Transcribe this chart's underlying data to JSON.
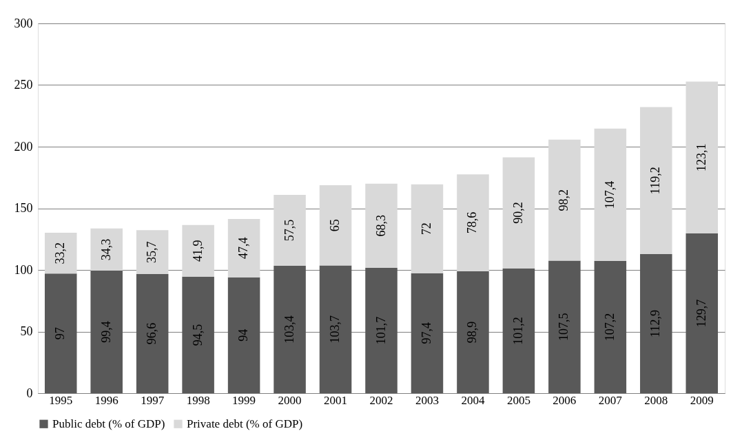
{
  "chart_data": {
    "type": "bar",
    "stacked": true,
    "categories": [
      "1995",
      "1996",
      "1997",
      "1998",
      "1999",
      "2000",
      "2001",
      "2002",
      "2003",
      "2004",
      "2005",
      "2006",
      "2007",
      "2008",
      "2009"
    ],
    "series": [
      {
        "name": "Public debt (% of GDP)",
        "color": "#595959",
        "values": [
          97,
          99.4,
          96.6,
          94.5,
          94,
          103.4,
          103.7,
          101.7,
          97.4,
          98.9,
          101.2,
          107.5,
          107.2,
          112.9,
          129.7
        ],
        "value_labels": [
          "97",
          "99,4",
          "96,6",
          "94,5",
          "94",
          "103,4",
          "103,7",
          "101,7",
          "97,4",
          "98,9",
          "101,2",
          "107,5",
          "107,2",
          "112,9",
          "129,7"
        ]
      },
      {
        "name": "Private debt (% of GDP)",
        "color": "#d9d9d9",
        "values": [
          33.2,
          34.3,
          35.7,
          41.9,
          47.4,
          57.5,
          65,
          68.3,
          72,
          78.6,
          90.2,
          98.2,
          107.4,
          119.2,
          123.1
        ],
        "value_labels": [
          "33,2",
          "34,3",
          "35,7",
          "41,9",
          "47,4",
          "57,5",
          "65",
          "68,3",
          "72",
          "78,6",
          "90,2",
          "98,2",
          "107,4",
          "119,2",
          "123,1"
        ]
      }
    ],
    "ylim": [
      0,
      300
    ],
    "yticks": [
      0,
      50,
      100,
      150,
      200,
      250,
      300
    ],
    "grid": "y",
    "legend": "bottom"
  }
}
